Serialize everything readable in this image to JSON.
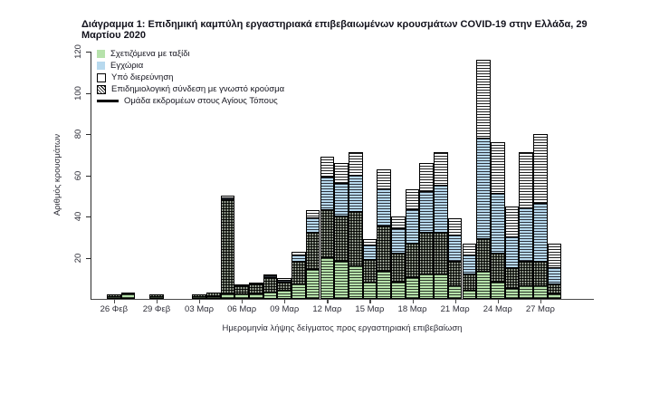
{
  "title": "Διάγραμμα 1: Επιδημική καμπύλη εργαστηριακά επιβεβαιωμένων κρουσμάτων COVID-19 στην Ελλάδα, 29 Μαρτίου 2020",
  "colors": {
    "travel_green": "#b6e2ab",
    "domestic_blue": "#b7d9ee",
    "investigation_white": "#ffffff",
    "epi_link_dark_hatch": "#394035",
    "pilgrims_line": "#000000",
    "axis": "#4a4a4a",
    "text": "#15151f"
  },
  "legend": [
    {
      "key": "travel",
      "label": "Σχετιζόμενα με ταξίδι",
      "swatch": "green-square"
    },
    {
      "key": "domestic",
      "label": "Εγχώρια",
      "swatch": "blue-square"
    },
    {
      "key": "investigation",
      "label": "Υπό διερεύνηση",
      "swatch": "white-square"
    },
    {
      "key": "epi_link",
      "label": "Επιδημιολογική σύνδεση με γνωστό κρούσμα",
      "swatch": "hatched-square"
    },
    {
      "key": "pilgrims",
      "label": "Ομάδα εκδρομέων στους Αγίους Τόπους",
      "swatch": "black-line"
    }
  ],
  "chart_data": {
    "type": "bar",
    "stacked": true,
    "title": "Διάγραμμα 1: Επιδημική καμπύλη εργαστηριακά επιβεβαιωμένων κρουσμάτων COVID-19 στην Ελλάδα, 29 Μαρτίου 2020",
    "xlabel": "Ημερομηνία λήψης δείγματος προς εργαστηριακή επιβεβαίωση",
    "ylabel": "Αριθμός κρουσμάτων",
    "ylim": [
      0,
      120
    ],
    "yticks": [
      20,
      40,
      60,
      80,
      100,
      120
    ],
    "xtick_every": 3,
    "xtick_labels": [
      "26 Φεβ",
      "29 Φεβ",
      "03 Μαρ",
      "06 Μαρ",
      "09 Μαρ",
      "12 Μαρ",
      "15 Μαρ",
      "18 Μαρ",
      "21 Μαρ",
      "24 Μαρ",
      "27 Μαρ"
    ],
    "grid": false,
    "legend_position": "top-left-inside",
    "categories": [
      "26 Φεβ",
      "27 Φεβ",
      "28 Φεβ",
      "29 Φεβ",
      "01 Μαρ",
      "02 Μαρ",
      "03 Μαρ",
      "04 Μαρ",
      "05 Μαρ",
      "06 Μαρ",
      "07 Μαρ",
      "08 Μαρ",
      "09 Μαρ",
      "10 Μαρ",
      "11 Μαρ",
      "12 Μαρ",
      "13 Μαρ",
      "14 Μαρ",
      "15 Μαρ",
      "16 Μαρ",
      "17 Μαρ",
      "18 Μαρ",
      "19 Μαρ",
      "20 Μαρ",
      "21 Μαρ",
      "22 Μαρ",
      "23 Μαρ",
      "24 Μαρ",
      "25 Μαρ",
      "26 Μαρ",
      "27 Μαρ",
      "28 Μαρ"
    ],
    "totals": [
      2,
      3,
      0,
      2,
      0,
      0,
      2,
      3,
      50,
      7,
      8,
      12,
      10,
      23,
      43,
      69,
      66,
      71,
      29,
      63,
      40,
      53,
      66,
      71,
      39,
      27,
      116,
      76,
      45,
      71,
      80,
      27
    ],
    "series": [
      {
        "key": "travel",
        "name": "Σχετιζόμενα με ταξίδι",
        "values": [
          1,
          2,
          0,
          1,
          0,
          0,
          1,
          1,
          2,
          2,
          2,
          3,
          4,
          7,
          14,
          20,
          18,
          16,
          8,
          13,
          8,
          10,
          12,
          12,
          6,
          4,
          13,
          8,
          5,
          6,
          6,
          2
        ]
      },
      {
        "key": "epi_link",
        "name": "Επιδημιολογική σύνδεση με γνωστό κρούσμα",
        "values": [
          1,
          1,
          0,
          1,
          0,
          0,
          1,
          2,
          46,
          4,
          5,
          7,
          4,
          11,
          18,
          23,
          22,
          26,
          11,
          22,
          14,
          17,
          20,
          20,
          12,
          8,
          16,
          14,
          10,
          12,
          12,
          5
        ]
      },
      {
        "key": "domestic",
        "name": "Εγχώρια",
        "values": [
          0,
          0,
          0,
          0,
          0,
          0,
          0,
          0,
          1,
          1,
          1,
          1,
          1,
          3,
          7,
          16,
          16,
          18,
          7,
          18,
          12,
          16,
          20,
          23,
          13,
          9,
          49,
          29,
          15,
          26,
          28,
          8
        ]
      },
      {
        "key": "investigation",
        "name": "Υπό διερεύνηση",
        "values": [
          0,
          0,
          0,
          0,
          0,
          0,
          0,
          0,
          1,
          0,
          0,
          1,
          1,
          2,
          4,
          10,
          10,
          11,
          3,
          10,
          6,
          10,
          14,
          16,
          8,
          6,
          38,
          25,
          15,
          27,
          34,
          12
        ]
      }
    ],
    "annotations": "Η ομάδα εκδρομέων στους Αγίους Τόπους εμφανίζεται ως μαύρη οριζόντια διαγράμμιση επί των στηλών"
  }
}
